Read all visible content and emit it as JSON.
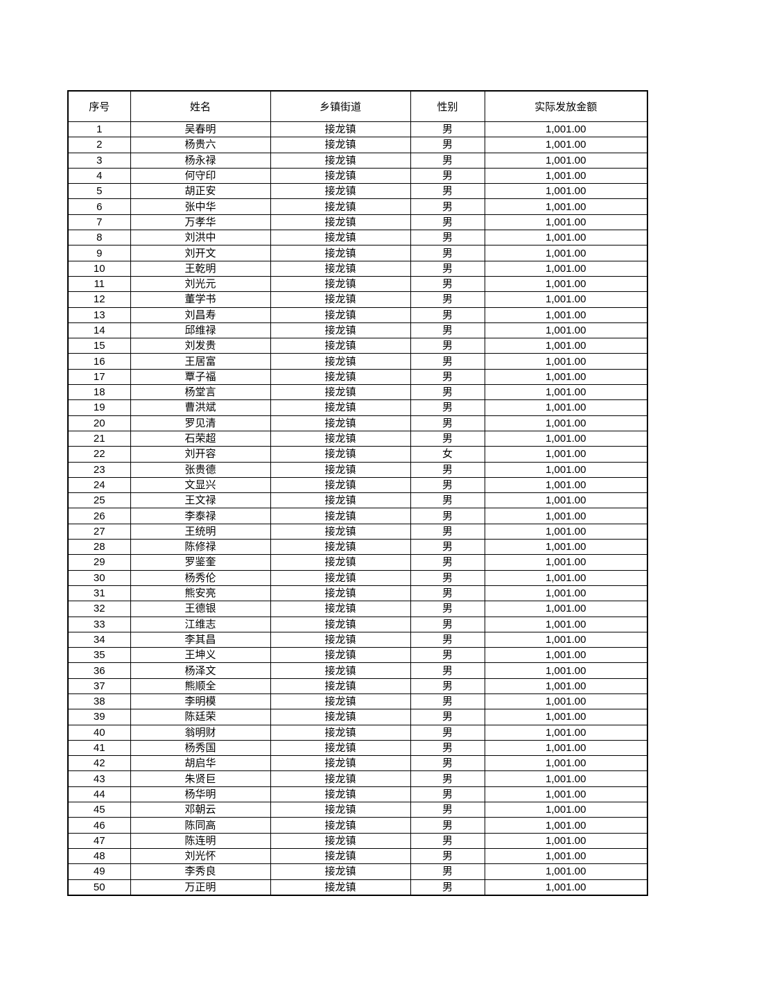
{
  "table": {
    "headers": [
      "序号",
      "姓名",
      "乡镇街道",
      "性别",
      "实际发放金额"
    ],
    "rows": [
      [
        "1",
        "吴春明",
        "接龙镇",
        "男",
        "1,001.00"
      ],
      [
        "2",
        "杨贵六",
        "接龙镇",
        "男",
        "1,001.00"
      ],
      [
        "3",
        "杨永禄",
        "接龙镇",
        "男",
        "1,001.00"
      ],
      [
        "4",
        "何守印",
        "接龙镇",
        "男",
        "1,001.00"
      ],
      [
        "5",
        "胡正安",
        "接龙镇",
        "男",
        "1,001.00"
      ],
      [
        "6",
        "张中华",
        "接龙镇",
        "男",
        "1,001.00"
      ],
      [
        "7",
        "万孝华",
        "接龙镇",
        "男",
        "1,001.00"
      ],
      [
        "8",
        "刘洪中",
        "接龙镇",
        "男",
        "1,001.00"
      ],
      [
        "9",
        "刘开文",
        "接龙镇",
        "男",
        "1,001.00"
      ],
      [
        "10",
        "王乾明",
        "接龙镇",
        "男",
        "1,001.00"
      ],
      [
        "11",
        "刘光元",
        "接龙镇",
        "男",
        "1,001.00"
      ],
      [
        "12",
        "董学书",
        "接龙镇",
        "男",
        "1,001.00"
      ],
      [
        "13",
        "刘昌寿",
        "接龙镇",
        "男",
        "1,001.00"
      ],
      [
        "14",
        "邱维禄",
        "接龙镇",
        "男",
        "1,001.00"
      ],
      [
        "15",
        "刘发贵",
        "接龙镇",
        "男",
        "1,001.00"
      ],
      [
        "16",
        "王居富",
        "接龙镇",
        "男",
        "1,001.00"
      ],
      [
        "17",
        "覃子福",
        "接龙镇",
        "男",
        "1,001.00"
      ],
      [
        "18",
        "杨堂言",
        "接龙镇",
        "男",
        "1,001.00"
      ],
      [
        "19",
        "曹洪斌",
        "接龙镇",
        "男",
        "1,001.00"
      ],
      [
        "20",
        "罗见清",
        "接龙镇",
        "男",
        "1,001.00"
      ],
      [
        "21",
        "石荣超",
        "接龙镇",
        "男",
        "1,001.00"
      ],
      [
        "22",
        "刘开容",
        "接龙镇",
        "女",
        "1,001.00"
      ],
      [
        "23",
        "张贵德",
        "接龙镇",
        "男",
        "1,001.00"
      ],
      [
        "24",
        "文显兴",
        "接龙镇",
        "男",
        "1,001.00"
      ],
      [
        "25",
        "王文禄",
        "接龙镇",
        "男",
        "1,001.00"
      ],
      [
        "26",
        "李泰禄",
        "接龙镇",
        "男",
        "1,001.00"
      ],
      [
        "27",
        "王统明",
        "接龙镇",
        "男",
        "1,001.00"
      ],
      [
        "28",
        "陈修禄",
        "接龙镇",
        "男",
        "1,001.00"
      ],
      [
        "29",
        "罗鉴奎",
        "接龙镇",
        "男",
        "1,001.00"
      ],
      [
        "30",
        "杨秀伦",
        "接龙镇",
        "男",
        "1,001.00"
      ],
      [
        "31",
        "熊安亮",
        "接龙镇",
        "男",
        "1,001.00"
      ],
      [
        "32",
        "王德银",
        "接龙镇",
        "男",
        "1,001.00"
      ],
      [
        "33",
        "江维志",
        "接龙镇",
        "男",
        "1,001.00"
      ],
      [
        "34",
        "李其昌",
        "接龙镇",
        "男",
        "1,001.00"
      ],
      [
        "35",
        "王坤义",
        "接龙镇",
        "男",
        "1,001.00"
      ],
      [
        "36",
        "杨泽文",
        "接龙镇",
        "男",
        "1,001.00"
      ],
      [
        "37",
        "熊顺全",
        "接龙镇",
        "男",
        "1,001.00"
      ],
      [
        "38",
        "李明模",
        "接龙镇",
        "男",
        "1,001.00"
      ],
      [
        "39",
        "陈廷荣",
        "接龙镇",
        "男",
        "1,001.00"
      ],
      [
        "40",
        "翁明财",
        "接龙镇",
        "男",
        "1,001.00"
      ],
      [
        "41",
        "杨秀国",
        "接龙镇",
        "男",
        "1,001.00"
      ],
      [
        "42",
        "胡启华",
        "接龙镇",
        "男",
        "1,001.00"
      ],
      [
        "43",
        "朱贤巨",
        "接龙镇",
        "男",
        "1,001.00"
      ],
      [
        "44",
        "杨华明",
        "接龙镇",
        "男",
        "1,001.00"
      ],
      [
        "45",
        "邓朝云",
        "接龙镇",
        "男",
        "1,001.00"
      ],
      [
        "46",
        "陈同高",
        "接龙镇",
        "男",
        "1,001.00"
      ],
      [
        "47",
        "陈连明",
        "接龙镇",
        "男",
        "1,001.00"
      ],
      [
        "48",
        "刘光怀",
        "接龙镇",
        "男",
        "1,001.00"
      ],
      [
        "49",
        "李秀良",
        "接龙镇",
        "男",
        "1,001.00"
      ],
      [
        "50",
        "万正明",
        "接龙镇",
        "男",
        "1,001.00"
      ]
    ]
  }
}
